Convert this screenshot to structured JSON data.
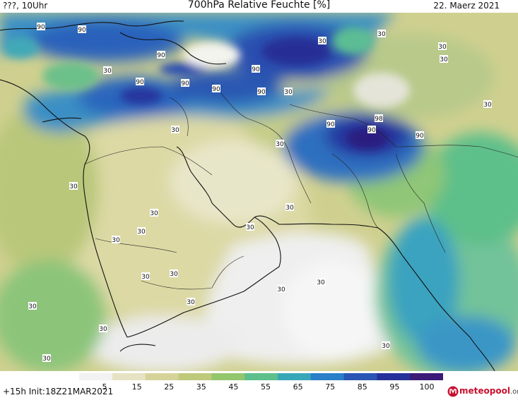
{
  "header": {
    "left": "???, 10Uhr",
    "title": "700hPa Relative Feuchte [%]",
    "right": "22. Maerz 2021"
  },
  "footer": {
    "init": "+15h  Init:18Z21MAR2021",
    "brand": "meteopool",
    "brand_tld": ".org"
  },
  "legend": {
    "ticks": [
      "5",
      "15",
      "25",
      "35",
      "45",
      "55",
      "65",
      "75",
      "85",
      "95",
      "100"
    ],
    "colors": [
      "#f2f2f2",
      "#e6e3c4",
      "#d6d39a",
      "#bfc97a",
      "#93c76e",
      "#5cbf8c",
      "#38a7b8",
      "#2a7fc9",
      "#2a55b5",
      "#26309a",
      "#3b1a78"
    ]
  },
  "map": {
    "contour_labels": [
      {
        "text": "90"
      },
      {
        "text": "90"
      },
      {
        "text": "90"
      },
      {
        "text": "90"
      },
      {
        "text": "90"
      },
      {
        "text": "90"
      },
      {
        "text": "90"
      },
      {
        "text": "90"
      },
      {
        "text": "90"
      },
      {
        "text": "90"
      },
      {
        "text": "90"
      },
      {
        "text": "98"
      },
      {
        "text": "30"
      },
      {
        "text": "30"
      },
      {
        "text": "30"
      },
      {
        "text": "30"
      },
      {
        "text": "30"
      },
      {
        "text": "30"
      },
      {
        "text": "30"
      },
      {
        "text": "30"
      },
      {
        "text": "30"
      },
      {
        "text": "30"
      },
      {
        "text": "30"
      },
      {
        "text": "30"
      },
      {
        "text": "30"
      },
      {
        "text": "30"
      },
      {
        "text": "30"
      },
      {
        "text": "30"
      },
      {
        "text": "30"
      },
      {
        "text": "30"
      },
      {
        "text": "30"
      },
      {
        "text": "30"
      },
      {
        "text": "30"
      },
      {
        "text": "30"
      },
      {
        "text": "30"
      },
      {
        "text": "30"
      }
    ]
  }
}
